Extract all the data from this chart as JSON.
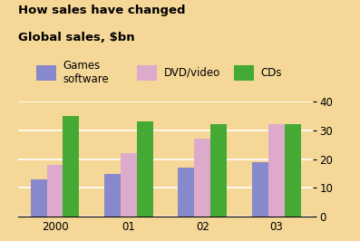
{
  "title_line1": "How sales have changed",
  "title_line2": "Global sales, $bn",
  "categories": [
    "2000",
    "01",
    "02",
    "03"
  ],
  "series": {
    "Games software": [
      13,
      15,
      17,
      19
    ],
    "DVD/video": [
      18,
      22,
      27,
      32
    ],
    "CDs": [
      35,
      33,
      32,
      32
    ]
  },
  "colors": {
    "Games software": "#8888cc",
    "DVD/video": "#ddaacc",
    "CDs": "#44aa33"
  },
  "ylim": [
    0,
    40
  ],
  "yticks": [
    0,
    10,
    20,
    30,
    40
  ],
  "background_color": "#f5d898",
  "bar_width": 0.22,
  "grid_color": "#ffffff",
  "title_fontsize": 9.5,
  "tick_fontsize": 8.5,
  "legend_fontsize": 8.5
}
